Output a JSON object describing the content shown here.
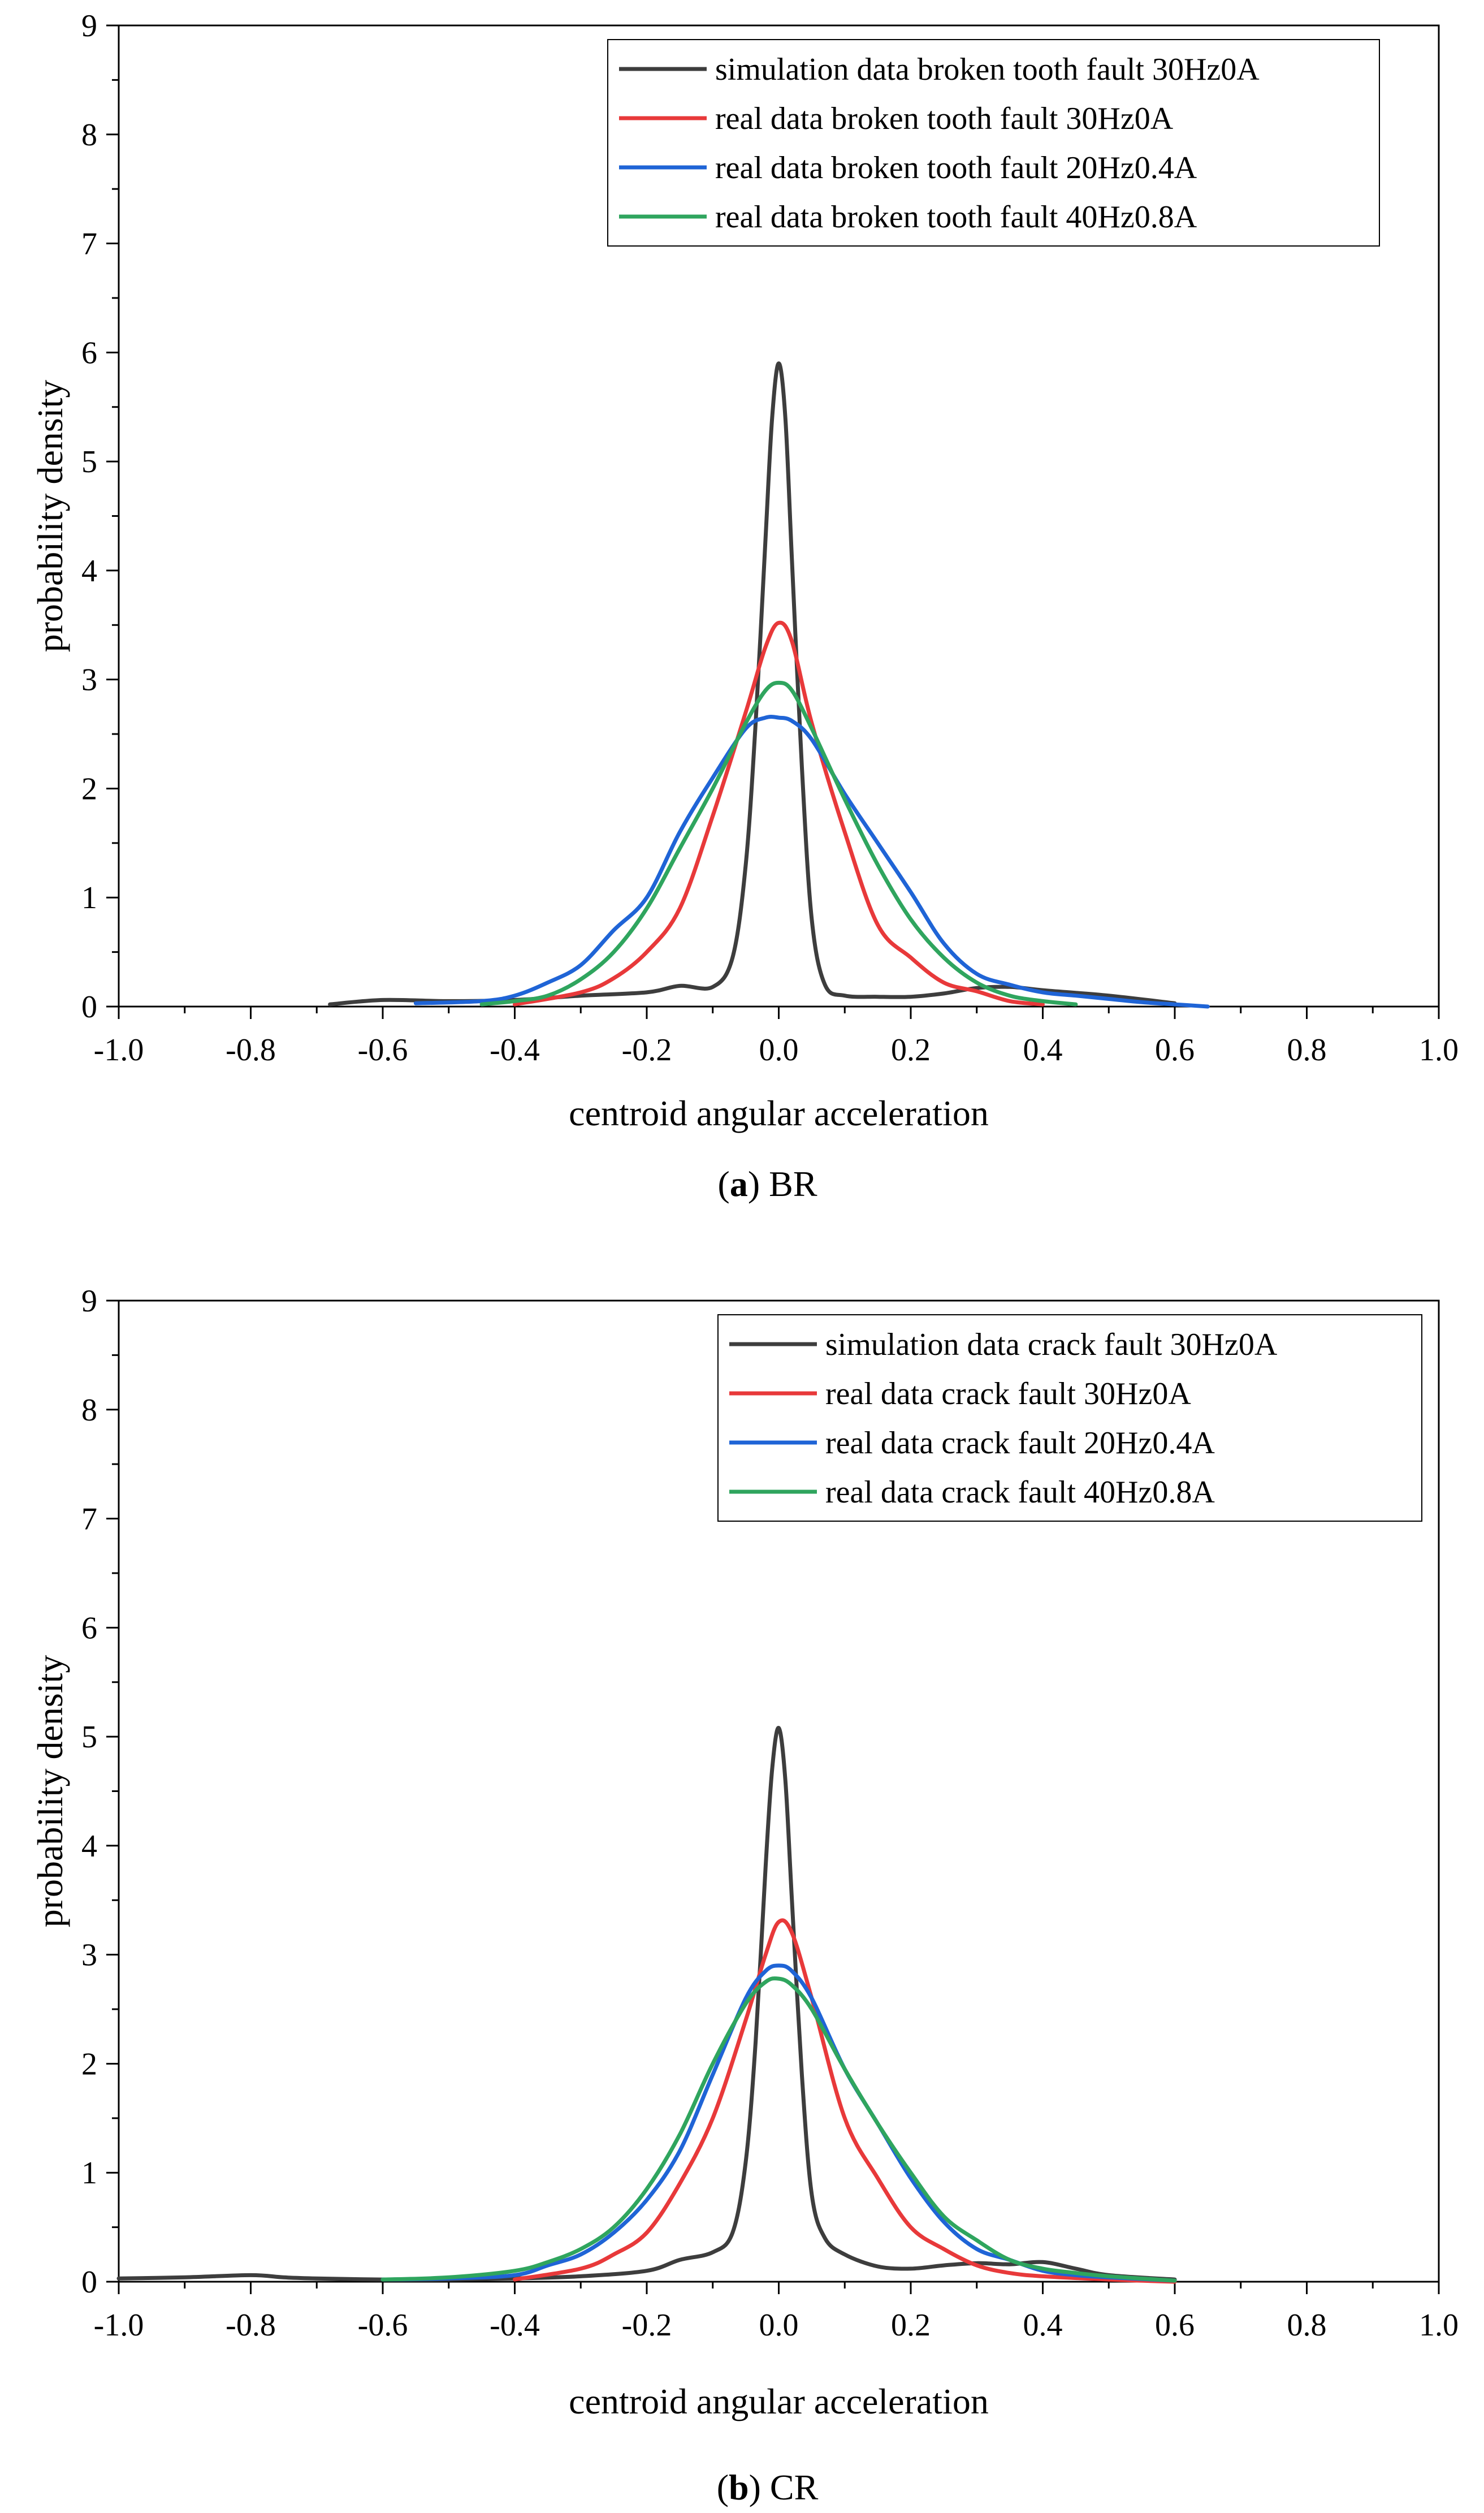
{
  "colors": {
    "simulation": "#3d3d3d",
    "real_30": "#e8393a",
    "real_20": "#1f64d6",
    "real_40": "#2fa55e"
  },
  "chart_data": [
    {
      "type": "line",
      "caption": {
        "letter": "a",
        "text": "BR"
      },
      "xlabel": "centroid angular acceleration",
      "ylabel": "probability density",
      "xlim": [
        -1.0,
        1.0
      ],
      "ylim": [
        0,
        9
      ],
      "xticks": [
        "-1.0",
        "-0.8",
        "-0.6",
        "-0.4",
        "-0.2",
        "0.0",
        "0.2",
        "0.4",
        "0.6",
        "0.8",
        "1.0"
      ],
      "yticks": [
        "0",
        "1",
        "2",
        "3",
        "4",
        "5",
        "6",
        "7",
        "8",
        "9"
      ],
      "legend_position": "top-right",
      "series": [
        {
          "name": "simulation data broken tooth fault 30Hz0A",
          "color_key": "simulation",
          "x": [
            -0.68,
            -0.6,
            -0.5,
            -0.4,
            -0.3,
            -0.2,
            -0.15,
            -0.1,
            -0.07,
            -0.05,
            -0.035,
            -0.02,
            -0.01,
            0.0,
            0.01,
            0.02,
            0.035,
            0.05,
            0.07,
            0.1,
            0.15,
            0.2,
            0.25,
            0.3,
            0.35,
            0.4,
            0.5,
            0.6
          ],
          "y": [
            0.02,
            0.06,
            0.05,
            0.06,
            0.1,
            0.13,
            0.19,
            0.18,
            0.45,
            1.3,
            2.6,
            4.3,
            5.4,
            5.9,
            5.4,
            4.1,
            2.2,
            0.8,
            0.2,
            0.1,
            0.09,
            0.09,
            0.12,
            0.17,
            0.18,
            0.15,
            0.1,
            0.03
          ]
        },
        {
          "name": "real data broken tooth fault 30Hz0A",
          "color_key": "real_30",
          "x": [
            -0.4,
            -0.3,
            -0.25,
            -0.2,
            -0.15,
            -0.1,
            -0.05,
            -0.02,
            0.0,
            0.02,
            0.05,
            0.1,
            0.15,
            0.2,
            0.25,
            0.3,
            0.35,
            0.4
          ],
          "y": [
            0.02,
            0.13,
            0.26,
            0.5,
            0.9,
            1.75,
            2.7,
            3.3,
            3.52,
            3.35,
            2.6,
            1.6,
            0.75,
            0.45,
            0.22,
            0.14,
            0.05,
            0.02
          ]
        },
        {
          "name": "real data broken tooth fault 20Hz0.4A",
          "color_key": "real_20",
          "x": [
            -0.55,
            -0.45,
            -0.4,
            -0.35,
            -0.3,
            -0.25,
            -0.2,
            -0.15,
            -0.1,
            -0.05,
            -0.02,
            0.0,
            0.02,
            0.05,
            0.1,
            0.15,
            0.2,
            0.25,
            0.3,
            0.35,
            0.4,
            0.45,
            0.5,
            0.55,
            0.6,
            0.65
          ],
          "y": [
            0.03,
            0.05,
            0.1,
            0.22,
            0.38,
            0.7,
            1.0,
            1.6,
            2.1,
            2.55,
            2.65,
            2.65,
            2.62,
            2.45,
            1.95,
            1.5,
            1.05,
            0.58,
            0.3,
            0.2,
            0.13,
            0.1,
            0.07,
            0.04,
            0.02,
            0.0
          ]
        },
        {
          "name": "real data broken tooth fault 40Hz0.8A",
          "color_key": "real_40",
          "x": [
            -0.45,
            -0.4,
            -0.35,
            -0.3,
            -0.25,
            -0.2,
            -0.15,
            -0.1,
            -0.05,
            -0.02,
            0.0,
            0.02,
            0.05,
            0.1,
            0.15,
            0.2,
            0.25,
            0.3,
            0.35,
            0.4,
            0.45
          ],
          "y": [
            0.02,
            0.05,
            0.1,
            0.25,
            0.5,
            0.9,
            1.45,
            2.0,
            2.6,
            2.9,
            2.97,
            2.9,
            2.55,
            1.9,
            1.3,
            0.8,
            0.45,
            0.22,
            0.1,
            0.05,
            0.02
          ]
        }
      ]
    },
    {
      "type": "line",
      "caption": {
        "letter": "b",
        "text": "CR"
      },
      "xlabel": "centroid angular acceleration",
      "ylabel": "probability density",
      "xlim": [
        -1.0,
        1.0
      ],
      "ylim": [
        0,
        9
      ],
      "xticks": [
        "-1.0",
        "-0.8",
        "-0.6",
        "-0.4",
        "-0.2",
        "0.0",
        "0.2",
        "0.4",
        "0.6",
        "0.8",
        "1.0"
      ],
      "yticks": [
        "0",
        "1",
        "2",
        "3",
        "4",
        "5",
        "6",
        "7",
        "8",
        "9"
      ],
      "legend_position": "top-right",
      "series": [
        {
          "name": "simulation data crack fault 30Hz0A",
          "color_key": "simulation",
          "x": [
            -1.0,
            -0.9,
            -0.8,
            -0.75,
            -0.7,
            -0.6,
            -0.5,
            -0.4,
            -0.3,
            -0.2,
            -0.15,
            -0.1,
            -0.07,
            -0.05,
            -0.035,
            -0.02,
            -0.01,
            0.0,
            0.01,
            0.02,
            0.035,
            0.05,
            0.07,
            0.1,
            0.15,
            0.2,
            0.25,
            0.3,
            0.35,
            0.4,
            0.45,
            0.5,
            0.6
          ],
          "y": [
            0.03,
            0.04,
            0.06,
            0.04,
            0.03,
            0.02,
            0.02,
            0.03,
            0.05,
            0.1,
            0.2,
            0.27,
            0.45,
            1.1,
            2.2,
            3.8,
            4.7,
            5.08,
            4.6,
            3.5,
            1.9,
            0.8,
            0.4,
            0.25,
            0.14,
            0.12,
            0.15,
            0.17,
            0.16,
            0.18,
            0.12,
            0.06,
            0.02
          ]
        },
        {
          "name": "real data crack fault 30Hz0A",
          "color_key": "real_30",
          "x": [
            -0.4,
            -0.3,
            -0.25,
            -0.2,
            -0.15,
            -0.1,
            -0.05,
            -0.02,
            0.0,
            0.02,
            0.05,
            0.1,
            0.15,
            0.2,
            0.25,
            0.3,
            0.35,
            0.4,
            0.5,
            0.6
          ],
          "y": [
            0.02,
            0.12,
            0.25,
            0.45,
            0.9,
            1.5,
            2.4,
            3.0,
            3.3,
            3.2,
            2.6,
            1.5,
            0.95,
            0.5,
            0.3,
            0.15,
            0.08,
            0.05,
            0.02,
            0.0
          ]
        },
        {
          "name": "real data crack fault 20Hz0.4A",
          "color_key": "real_20",
          "x": [
            -0.6,
            -0.5,
            -0.4,
            -0.35,
            -0.3,
            -0.25,
            -0.2,
            -0.15,
            -0.1,
            -0.05,
            -0.02,
            0.0,
            0.02,
            0.05,
            0.1,
            0.15,
            0.2,
            0.25,
            0.3,
            0.35,
            0.4,
            0.45,
            0.5,
            0.6
          ],
          "y": [
            0.02,
            0.03,
            0.06,
            0.15,
            0.25,
            0.45,
            0.75,
            1.2,
            1.9,
            2.6,
            2.85,
            2.9,
            2.85,
            2.6,
            1.95,
            1.45,
            0.95,
            0.55,
            0.3,
            0.2,
            0.1,
            0.06,
            0.04,
            0.01
          ]
        },
        {
          "name": "real data crack fault 40Hz0.8A",
          "color_key": "real_40",
          "x": [
            -0.6,
            -0.5,
            -0.4,
            -0.35,
            -0.3,
            -0.25,
            -0.2,
            -0.15,
            -0.1,
            -0.05,
            -0.02,
            0.0,
            0.02,
            0.05,
            0.1,
            0.15,
            0.2,
            0.25,
            0.3,
            0.35,
            0.4,
            0.45,
            0.5,
            0.6
          ],
          "y": [
            0.02,
            0.04,
            0.1,
            0.18,
            0.3,
            0.5,
            0.85,
            1.35,
            2.0,
            2.55,
            2.75,
            2.78,
            2.72,
            2.5,
            1.95,
            1.45,
            1.0,
            0.6,
            0.38,
            0.2,
            0.12,
            0.08,
            0.05,
            0.01
          ]
        }
      ]
    }
  ]
}
